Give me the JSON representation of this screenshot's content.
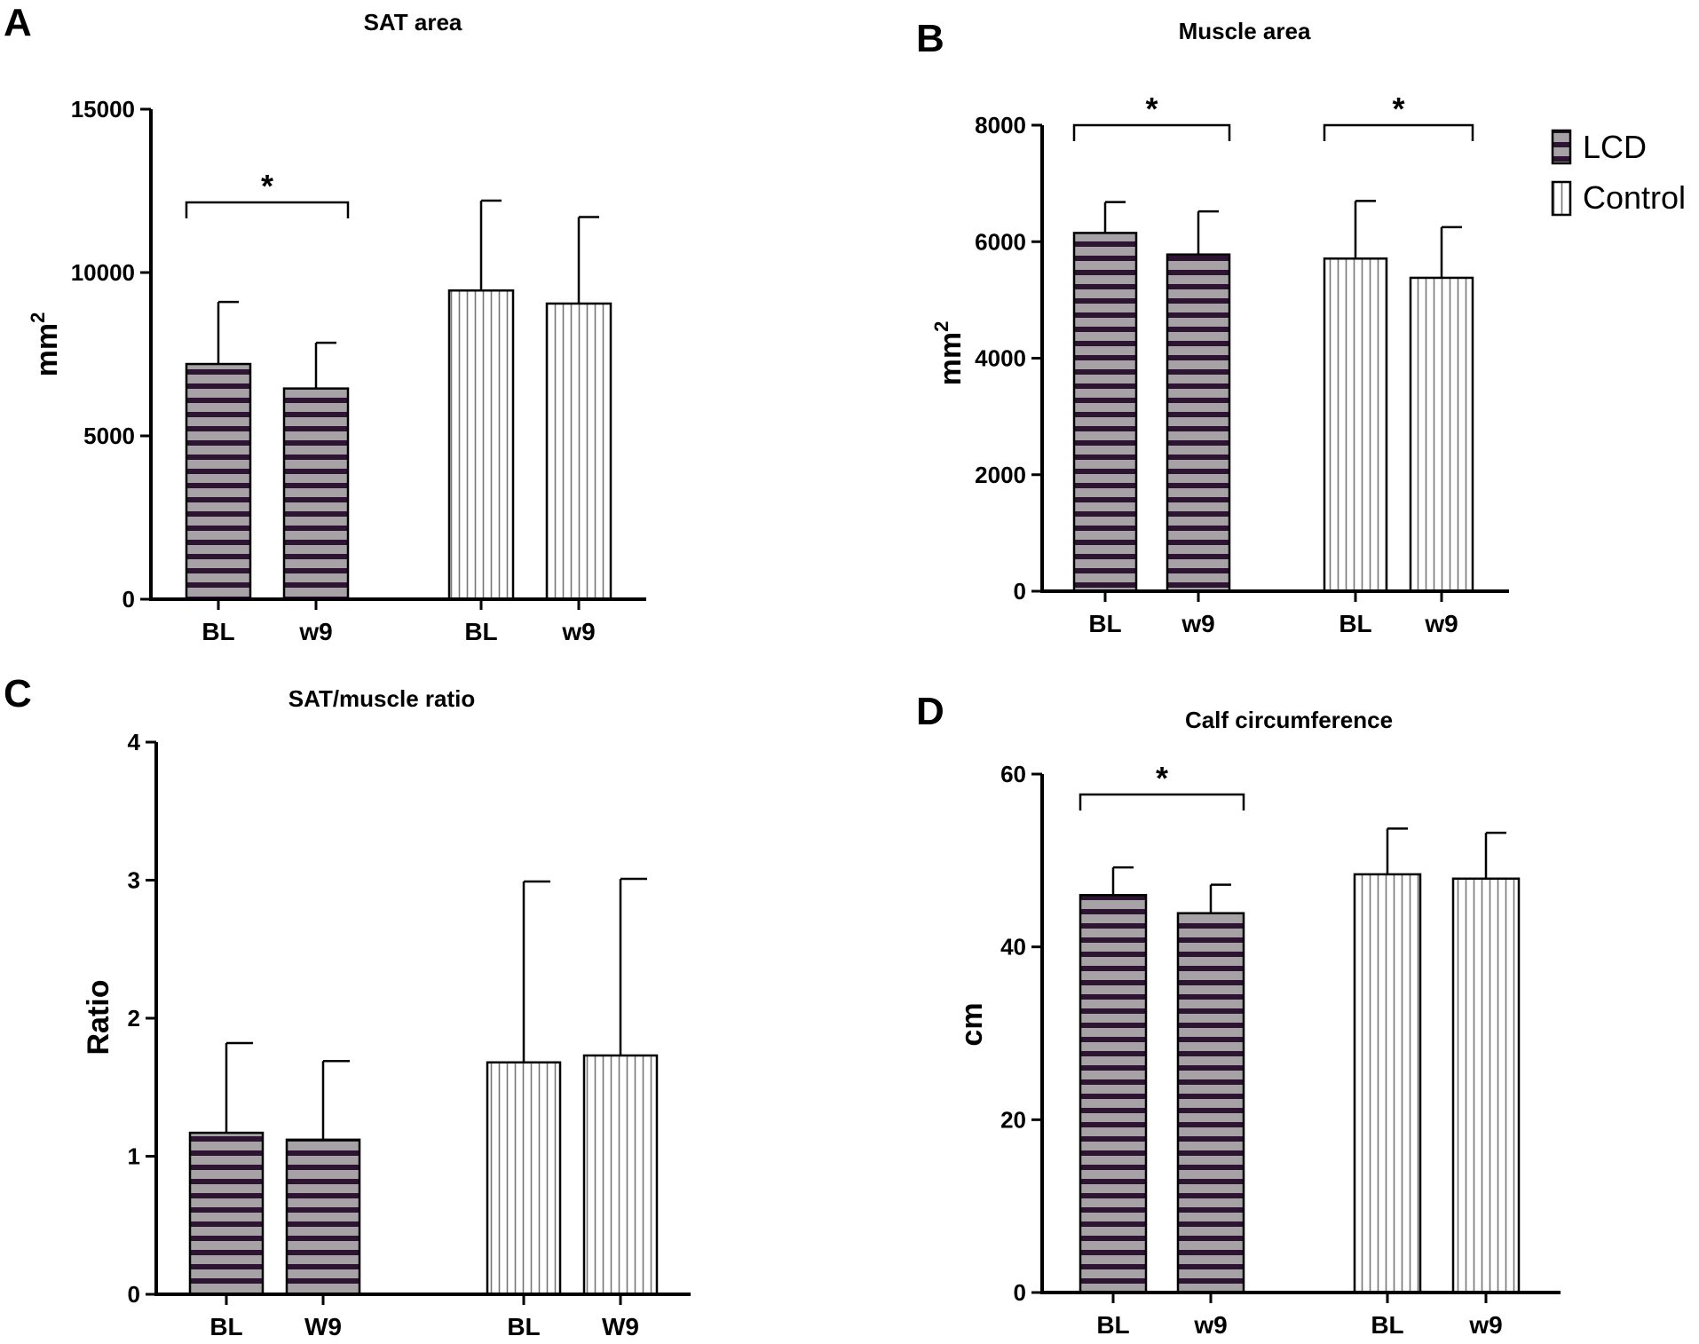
{
  "colors": {
    "lcd_dark": "#2e1433",
    "lcd_light": "#a6a2a6",
    "control_fill": "#ffffff",
    "control_line": "#777777",
    "axis": "#000000"
  },
  "legend": {
    "lcd": "LCD",
    "control": "Control"
  },
  "chart_data": [
    {
      "id": "A",
      "letter": "A",
      "type": "bar",
      "title": "SAT area",
      "ylabel": "mm",
      "ylabel_sup": "2",
      "xlabel": "",
      "ylim": [
        0,
        15000
      ],
      "yticks": [
        0,
        5000,
        10000,
        15000
      ],
      "categories": [
        "BL",
        "w9",
        "BL",
        "w9"
      ],
      "groups": [
        "LCD",
        "LCD",
        "Control",
        "Control"
      ],
      "values": [
        7200,
        6450,
        9450,
        9050
      ],
      "errors": [
        1900,
        1400,
        2750,
        2650
      ],
      "significance": [
        {
          "from": 0,
          "to": 1,
          "label": "*"
        }
      ]
    },
    {
      "id": "B",
      "letter": "B",
      "type": "bar",
      "title": "Muscle area",
      "ylabel": "mm",
      "ylabel_sup": "2",
      "xlabel": "",
      "ylim": [
        0,
        8000
      ],
      "yticks": [
        0,
        2000,
        4000,
        6000,
        8000
      ],
      "categories": [
        "BL",
        "w9",
        "BL",
        "w9"
      ],
      "groups": [
        "LCD",
        "LCD",
        "Control",
        "Control"
      ],
      "values": [
        6150,
        5780,
        5710,
        5380
      ],
      "errors": [
        530,
        740,
        990,
        870
      ],
      "significance": [
        {
          "from": 0,
          "to": 1,
          "label": "*"
        },
        {
          "from": 2,
          "to": 3,
          "label": "*"
        }
      ]
    },
    {
      "id": "C",
      "letter": "C",
      "type": "bar",
      "title": "SAT/muscle ratio",
      "ylabel": "Ratio",
      "ylabel_sup": "",
      "xlabel": "",
      "ylim": [
        0,
        4
      ],
      "yticks": [
        0,
        1,
        2,
        3,
        4
      ],
      "categories": [
        "BL",
        "W9",
        "BL",
        "W9"
      ],
      "groups": [
        "LCD",
        "LCD",
        "Control",
        "Control"
      ],
      "values": [
        1.17,
        1.12,
        1.68,
        1.73
      ],
      "errors": [
        0.65,
        0.57,
        1.31,
        1.28
      ],
      "significance": []
    },
    {
      "id": "D",
      "letter": "D",
      "type": "bar",
      "title": "Calf circumference",
      "ylabel": "cm",
      "ylabel_sup": "",
      "xlabel": "",
      "ylim": [
        0,
        60
      ],
      "yticks": [
        0,
        20,
        40,
        60
      ],
      "categories": [
        "BL",
        "w9",
        "BL",
        "w9"
      ],
      "groups": [
        "LCD",
        "LCD",
        "Control",
        "Control"
      ],
      "values": [
        46.0,
        43.9,
        48.4,
        47.9
      ],
      "errors": [
        3.2,
        3.3,
        5.3,
        5.3
      ],
      "significance": [
        {
          "from": 0,
          "to": 1,
          "label": "*"
        }
      ]
    }
  ]
}
